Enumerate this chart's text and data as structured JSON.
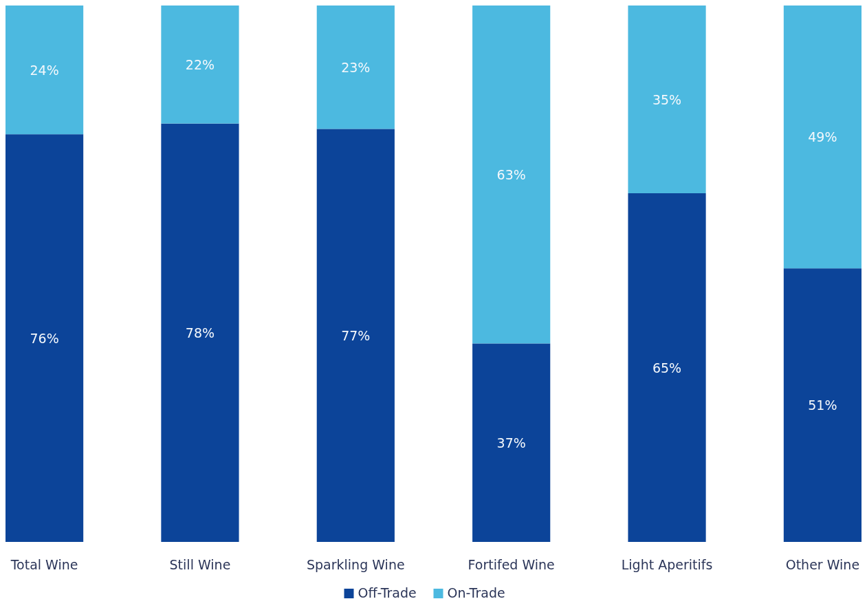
{
  "chart_data": {
    "type": "bar",
    "stacked": true,
    "categories": [
      "Total Wine",
      "Still Wine",
      "Sparkling Wine",
      "Fortifed Wine",
      "Light Aperitifs",
      "Other Wine"
    ],
    "series": [
      {
        "name": "Off-Trade",
        "color": "#0c4499",
        "values": [
          76,
          78,
          77,
          37,
          65,
          51
        ],
        "value_labels": [
          "76%",
          "78%",
          "77%",
          "37%",
          "65%",
          "51%"
        ]
      },
      {
        "name": "On-Trade",
        "color": "#4cb9e0",
        "values": [
          24,
          22,
          23,
          63,
          35,
          49
        ],
        "value_labels": [
          "24%",
          "22%",
          "23%",
          "63%",
          "35%",
          "49%"
        ]
      }
    ],
    "ylim": [
      0,
      100
    ],
    "tick_labels": "x",
    "legend": "bottom"
  }
}
